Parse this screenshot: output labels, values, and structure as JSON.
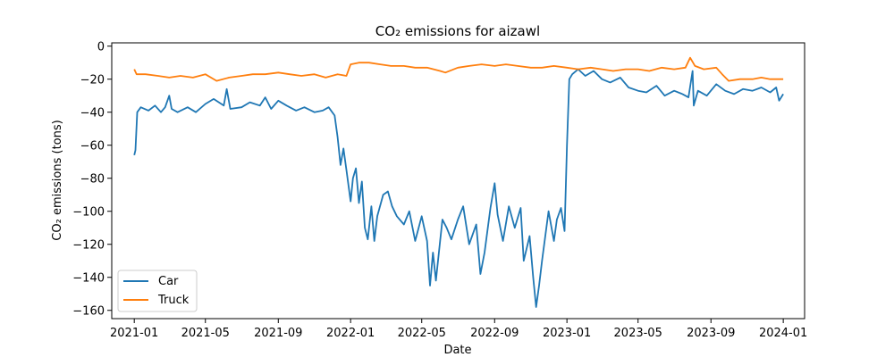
{
  "chart_data": {
    "type": "line",
    "title": "CO₂ emissions for aizawl",
    "xlabel": "Date",
    "ylabel": "CO₂ emissions (tons)",
    "xlim": [
      "2020-11-24",
      "2024-02-06"
    ],
    "ylim": [
      -165,
      2
    ],
    "x_ticks": [
      "2021-01",
      "2021-05",
      "2021-09",
      "2022-01",
      "2022-05",
      "2022-09",
      "2023-01",
      "2023-05",
      "2023-09",
      "2024-01"
    ],
    "y_ticks": [
      0,
      -20,
      -40,
      -60,
      -80,
      -100,
      -120,
      -140,
      -160
    ],
    "grid": false,
    "legend_position": "lower-left",
    "series": [
      {
        "name": "Car",
        "color": "#1f77b4",
        "points": [
          [
            "2021-01-01",
            -66
          ],
          [
            "2021-01-03",
            -63
          ],
          [
            "2021-01-06",
            -40
          ],
          [
            "2021-01-12",
            -37
          ],
          [
            "2021-01-25",
            -39
          ],
          [
            "2021-02-05",
            -36
          ],
          [
            "2021-02-15",
            -40
          ],
          [
            "2021-02-22",
            -37
          ],
          [
            "2021-03-01",
            -30
          ],
          [
            "2021-03-05",
            -38
          ],
          [
            "2021-03-15",
            -40
          ],
          [
            "2021-04-01",
            -37
          ],
          [
            "2021-04-15",
            -40
          ],
          [
            "2021-05-01",
            -35
          ],
          [
            "2021-05-15",
            -32
          ],
          [
            "2021-06-01",
            -36
          ],
          [
            "2021-06-06",
            -26
          ],
          [
            "2021-06-12",
            -38
          ],
          [
            "2021-07-01",
            -37
          ],
          [
            "2021-07-15",
            -34
          ],
          [
            "2021-08-01",
            -36
          ],
          [
            "2021-08-10",
            -31
          ],
          [
            "2021-08-20",
            -38
          ],
          [
            "2021-09-01",
            -33
          ],
          [
            "2021-09-15",
            -36
          ],
          [
            "2021-10-01",
            -39
          ],
          [
            "2021-10-15",
            -37
          ],
          [
            "2021-11-01",
            -40
          ],
          [
            "2021-11-15",
            -39
          ],
          [
            "2021-11-25",
            -37
          ],
          [
            "2021-12-05",
            -42
          ],
          [
            "2021-12-10",
            -55
          ],
          [
            "2021-12-15",
            -72
          ],
          [
            "2021-12-20",
            -62
          ],
          [
            "2021-12-25",
            -75
          ],
          [
            "2022-01-01",
            -94
          ],
          [
            "2022-01-05",
            -80
          ],
          [
            "2022-01-10",
            -74
          ],
          [
            "2022-01-15",
            -95
          ],
          [
            "2022-01-20",
            -82
          ],
          [
            "2022-01-25",
            -110
          ],
          [
            "2022-01-30",
            -117
          ],
          [
            "2022-02-05",
            -97
          ],
          [
            "2022-02-10",
            -118
          ],
          [
            "2022-02-15",
            -103
          ],
          [
            "2022-02-25",
            -90
          ],
          [
            "2022-03-05",
            -88
          ],
          [
            "2022-03-12",
            -97
          ],
          [
            "2022-03-20",
            -103
          ],
          [
            "2022-04-01",
            -108
          ],
          [
            "2022-04-10",
            -100
          ],
          [
            "2022-04-20",
            -118
          ],
          [
            "2022-05-01",
            -103
          ],
          [
            "2022-05-10",
            -118
          ],
          [
            "2022-05-15",
            -145
          ],
          [
            "2022-05-20",
            -125
          ],
          [
            "2022-05-25",
            -142
          ],
          [
            "2022-06-01",
            -118
          ],
          [
            "2022-06-05",
            -105
          ],
          [
            "2022-06-12",
            -110
          ],
          [
            "2022-06-20",
            -117
          ],
          [
            "2022-07-01",
            -105
          ],
          [
            "2022-07-10",
            -97
          ],
          [
            "2022-07-20",
            -120
          ],
          [
            "2022-08-01",
            -108
          ],
          [
            "2022-08-08",
            -138
          ],
          [
            "2022-08-15",
            -125
          ],
          [
            "2022-08-25",
            -98
          ],
          [
            "2022-09-01",
            -83
          ],
          [
            "2022-09-06",
            -102
          ],
          [
            "2022-09-15",
            -118
          ],
          [
            "2022-09-25",
            -97
          ],
          [
            "2022-10-05",
            -110
          ],
          [
            "2022-10-15",
            -98
          ],
          [
            "2022-10-20",
            -130
          ],
          [
            "2022-10-30",
            -115
          ],
          [
            "2022-11-05",
            -140
          ],
          [
            "2022-11-10",
            -158
          ],
          [
            "2022-11-15",
            -145
          ],
          [
            "2022-11-20",
            -130
          ],
          [
            "2022-12-01",
            -100
          ],
          [
            "2022-12-10",
            -118
          ],
          [
            "2022-12-15",
            -105
          ],
          [
            "2022-12-22",
            -98
          ],
          [
            "2022-12-28",
            -112
          ],
          [
            "2023-01-01",
            -60
          ],
          [
            "2023-01-05",
            -20
          ],
          [
            "2023-01-10",
            -17
          ],
          [
            "2023-01-20",
            -14
          ],
          [
            "2023-02-01",
            -18
          ],
          [
            "2023-02-15",
            -15
          ],
          [
            "2023-03-01",
            -20
          ],
          [
            "2023-03-15",
            -22
          ],
          [
            "2023-04-01",
            -19
          ],
          [
            "2023-04-15",
            -25
          ],
          [
            "2023-05-01",
            -27
          ],
          [
            "2023-05-15",
            -28
          ],
          [
            "2023-06-01",
            -24
          ],
          [
            "2023-06-15",
            -30
          ],
          [
            "2023-07-01",
            -27
          ],
          [
            "2023-07-15",
            -29
          ],
          [
            "2023-07-25",
            -31
          ],
          [
            "2023-08-01",
            -15
          ],
          [
            "2023-08-03",
            -36
          ],
          [
            "2023-08-10",
            -27
          ],
          [
            "2023-08-25",
            -30
          ],
          [
            "2023-09-10",
            -23
          ],
          [
            "2023-09-25",
            -27
          ],
          [
            "2023-10-10",
            -29
          ],
          [
            "2023-10-25",
            -26
          ],
          [
            "2023-11-10",
            -27
          ],
          [
            "2023-11-25",
            -25
          ],
          [
            "2023-12-10",
            -28
          ],
          [
            "2023-12-20",
            -25
          ],
          [
            "2023-12-25",
            -33
          ],
          [
            "2024-01-01",
            -29
          ]
        ]
      },
      {
        "name": "Truck",
        "color": "#ff7f0e",
        "points": [
          [
            "2021-01-01",
            -14
          ],
          [
            "2021-01-05",
            -17
          ],
          [
            "2021-01-20",
            -17
          ],
          [
            "2021-02-10",
            -18
          ],
          [
            "2021-03-01",
            -19
          ],
          [
            "2021-03-20",
            -18
          ],
          [
            "2021-04-10",
            -19
          ],
          [
            "2021-05-01",
            -17
          ],
          [
            "2021-05-20",
            -21
          ],
          [
            "2021-06-10",
            -19
          ],
          [
            "2021-07-01",
            -18
          ],
          [
            "2021-07-20",
            -17
          ],
          [
            "2021-08-10",
            -17
          ],
          [
            "2021-09-01",
            -16
          ],
          [
            "2021-09-20",
            -17
          ],
          [
            "2021-10-10",
            -18
          ],
          [
            "2021-11-01",
            -17
          ],
          [
            "2021-11-20",
            -19
          ],
          [
            "2021-12-10",
            -17
          ],
          [
            "2021-12-25",
            -18
          ],
          [
            "2022-01-01",
            -11
          ],
          [
            "2022-01-15",
            -10
          ],
          [
            "2022-02-01",
            -10
          ],
          [
            "2022-02-20",
            -11
          ],
          [
            "2022-03-10",
            -12
          ],
          [
            "2022-04-01",
            -12
          ],
          [
            "2022-04-20",
            -13
          ],
          [
            "2022-05-10",
            -13
          ],
          [
            "2022-06-01",
            -15
          ],
          [
            "2022-06-10",
            -16
          ],
          [
            "2022-07-01",
            -13
          ],
          [
            "2022-07-20",
            -12
          ],
          [
            "2022-08-10",
            -11
          ],
          [
            "2022-09-01",
            -12
          ],
          [
            "2022-09-20",
            -11
          ],
          [
            "2022-10-10",
            -12
          ],
          [
            "2022-11-01",
            -13
          ],
          [
            "2022-11-20",
            -13
          ],
          [
            "2022-12-10",
            -12
          ],
          [
            "2023-01-01",
            -13
          ],
          [
            "2023-01-20",
            -14
          ],
          [
            "2023-02-10",
            -13
          ],
          [
            "2023-03-01",
            -14
          ],
          [
            "2023-03-20",
            -15
          ],
          [
            "2023-04-10",
            -14
          ],
          [
            "2023-05-01",
            -14
          ],
          [
            "2023-05-20",
            -15
          ],
          [
            "2023-06-10",
            -13
          ],
          [
            "2023-07-01",
            -14
          ],
          [
            "2023-07-20",
            -13
          ],
          [
            "2023-07-28",
            -7
          ],
          [
            "2023-08-05",
            -12
          ],
          [
            "2023-08-20",
            -14
          ],
          [
            "2023-09-10",
            -13
          ],
          [
            "2023-09-20",
            -17
          ],
          [
            "2023-10-01",
            -21
          ],
          [
            "2023-10-20",
            -20
          ],
          [
            "2023-11-10",
            -20
          ],
          [
            "2023-11-25",
            -19
          ],
          [
            "2023-12-10",
            -20
          ],
          [
            "2024-01-01",
            -20
          ]
        ]
      }
    ]
  }
}
